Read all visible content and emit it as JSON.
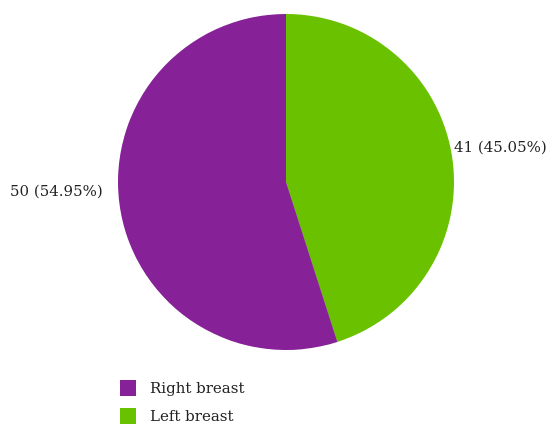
{
  "chart_data": {
    "type": "pie",
    "slices": [
      {
        "name": "Right breast",
        "value": 50,
        "percent": 54.95,
        "label": "50 (54.95%)",
        "color": "#862197"
      },
      {
        "name": "Left breast",
        "value": 41,
        "percent": 45.05,
        "label": "41 (45.05%)",
        "color": "#69c100"
      }
    ],
    "legend": {
      "placement": "bottom-left",
      "entries": [
        "Right breast",
        "Left breast"
      ]
    }
  }
}
